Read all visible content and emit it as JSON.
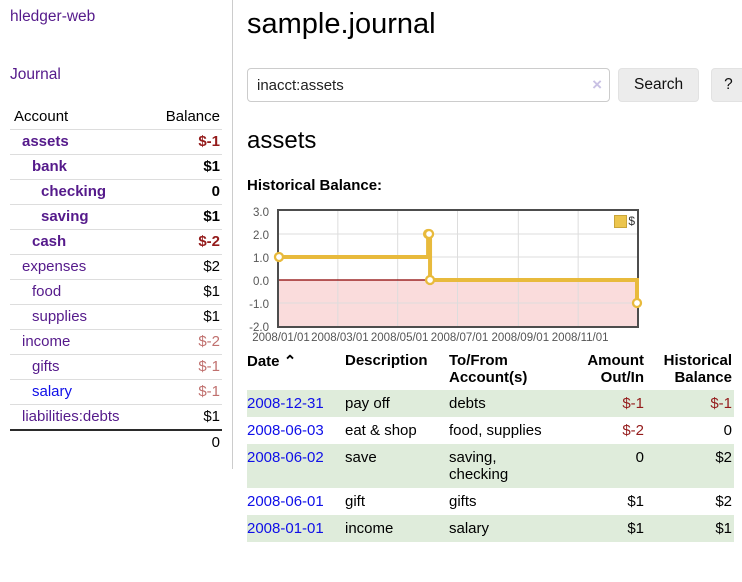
{
  "app": {
    "brand": "hledger-web",
    "nav_journal": "Journal"
  },
  "sidebar": {
    "headers": {
      "account": "Account",
      "balance": "Balance"
    },
    "accounts": [
      {
        "name": "assets",
        "balance": "$-1"
      },
      {
        "name": "bank",
        "balance": "$1"
      },
      {
        "name": "checking",
        "balance": "0"
      },
      {
        "name": "saving",
        "balance": "$1"
      },
      {
        "name": "cash",
        "balance": "$-2"
      },
      {
        "name": "expenses",
        "balance": "$2"
      },
      {
        "name": "food",
        "balance": "$1"
      },
      {
        "name": "supplies",
        "balance": "$1"
      },
      {
        "name": "income",
        "balance": "$-2"
      },
      {
        "name": "gifts",
        "balance": "$-1"
      },
      {
        "name": "salary",
        "balance": "$-1"
      },
      {
        "name": "liabilities:debts",
        "balance": "$1"
      }
    ],
    "total": "0"
  },
  "main": {
    "title": "sample.journal",
    "search": {
      "value": "inacct:assets",
      "clear_icon": "×",
      "button_label": "Search",
      "help_label": "?"
    },
    "account_heading": "assets",
    "chart_label": "Historical Balance:"
  },
  "register": {
    "headers": {
      "date": "Date",
      "sort_icon": "⌃",
      "description": "Description",
      "accounts": "To/From Account(s)",
      "amount": "Amount Out/In",
      "balance": "Historical Balance"
    },
    "rows": [
      {
        "date": "2008-12-31",
        "description": "pay off",
        "accounts": "debts",
        "amount": "$-1",
        "balance": "$-1"
      },
      {
        "date": "2008-06-03",
        "description": "eat & shop",
        "accounts": "food, supplies",
        "amount": "$-2",
        "balance": "0"
      },
      {
        "date": "2008-06-02",
        "description": "save",
        "accounts": "saving, checking",
        "amount": "0",
        "balance": "$2"
      },
      {
        "date": "2008-06-01",
        "description": "gift",
        "accounts": "gifts",
        "amount": "$1",
        "balance": "$2"
      },
      {
        "date": "2008-01-01",
        "description": "income",
        "accounts": "salary",
        "amount": "$1",
        "balance": "$1"
      }
    ]
  },
  "chart_data": {
    "type": "line",
    "title": "Historical Balance",
    "series": [
      {
        "name": "$",
        "style": "step",
        "color": "#e8ba3c",
        "points": [
          {
            "date": "2008-01-01",
            "value": 1
          },
          {
            "date": "2008-06-01",
            "value": 2
          },
          {
            "date": "2008-06-02",
            "value": 2
          },
          {
            "date": "2008-06-03",
            "value": 0
          },
          {
            "date": "2008-12-31",
            "value": -1
          }
        ],
        "point_days": [
          0,
          152,
          153,
          154,
          365
        ]
      }
    ],
    "x_ticks": [
      "2008/01/01",
      "2008/03/01",
      "2008/05/01",
      "2008/07/01",
      "2008/09/01",
      "2008/11/01"
    ],
    "x_tick_days": [
      0,
      60,
      121,
      182,
      244,
      305
    ],
    "x_range_days": 365,
    "y_ticks": [
      "3.0",
      "2.0",
      "1.0",
      "0.0",
      "-1.0",
      "-2.0"
    ],
    "ylim": [
      -2,
      3
    ],
    "grid": true,
    "legend_position": "top-right",
    "negative_region_color": "#fadcdc",
    "zero_line_color": "#8b0000",
    "grid_color": "#dddddd"
  }
}
